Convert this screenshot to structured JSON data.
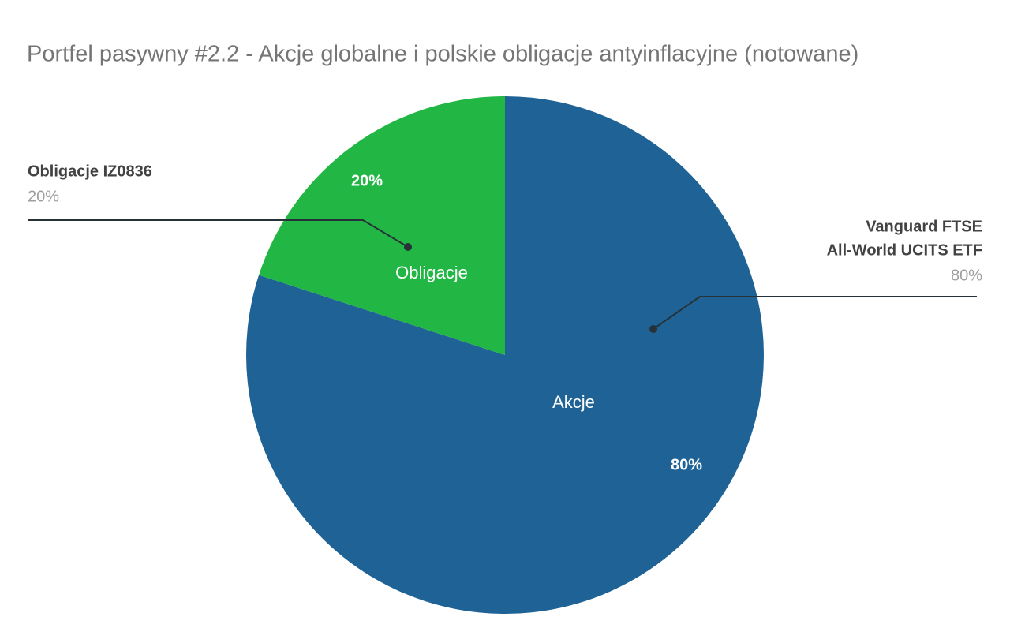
{
  "chart_data": {
    "type": "pie",
    "title": "Portfel pasywny #2.2 - Akcje globalne i polskie obligacje antyinflacyjne (notowane)",
    "categories": [
      "Akcje",
      "Obligacje"
    ],
    "values": [
      80,
      20
    ],
    "value_labels": [
      "80%",
      "20%"
    ],
    "callout_labels": [
      [
        "Vanguard FTSE",
        "All-World UCITS ETF"
      ],
      [
        "Obligacje IZ0836"
      ]
    ],
    "colors": [
      "#1f6396",
      "#22b745"
    ]
  }
}
